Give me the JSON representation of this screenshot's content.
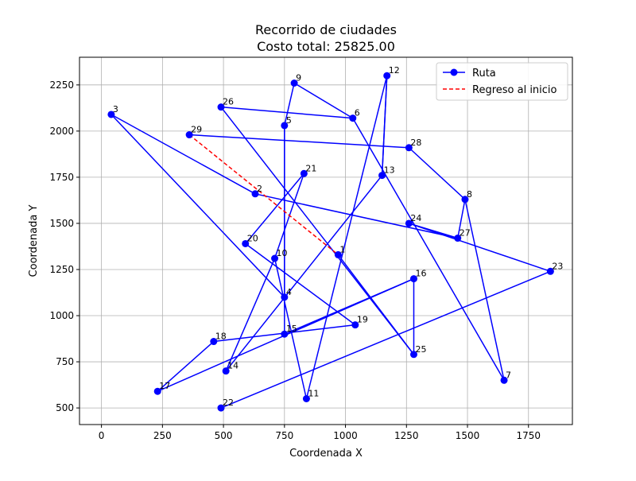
{
  "chart_data": {
    "type": "line",
    "title": "Recorrido de ciudades",
    "subtitle": "Costo total: 25825.00",
    "xlabel": "Coordenada X",
    "ylabel": "Coordenada Y",
    "xlim": [
      -90,
      1930
    ],
    "ylim": [
      410,
      2400
    ],
    "xticks": [
      0,
      250,
      500,
      750,
      1000,
      1250,
      1500,
      1750
    ],
    "yticks": [
      500,
      750,
      1000,
      1250,
      1500,
      1750,
      2000,
      2250
    ],
    "xtick_labels": [
      "0",
      "250",
      "500",
      "750",
      "1000",
      "1250",
      "1500",
      "1750"
    ],
    "ytick_labels": [
      "500",
      "750",
      "1000",
      "1250",
      "1500",
      "1750",
      "2000",
      "2250"
    ],
    "grid": true,
    "legend_position": "top-right",
    "legend": [
      "Ruta",
      "Regreso al inicio"
    ],
    "colors": {
      "route": "#0000ff",
      "return": "#ff0000",
      "grid": "#b0b0b0"
    },
    "cities": [
      {
        "id": "1",
        "x": 970,
        "y": 1330
      },
      {
        "id": "2",
        "x": 630,
        "y": 1660
      },
      {
        "id": "3",
        "x": 40,
        "y": 2090
      },
      {
        "id": "4",
        "x": 750,
        "y": 1100
      },
      {
        "id": "5",
        "x": 750,
        "y": 2030
      },
      {
        "id": "6",
        "x": 1030,
        "y": 2070
      },
      {
        "id": "7",
        "x": 1650,
        "y": 650
      },
      {
        "id": "8",
        "x": 1490,
        "y": 1630
      },
      {
        "id": "9",
        "x": 790,
        "y": 2260
      },
      {
        "id": "10",
        "x": 710,
        "y": 1310
      },
      {
        "id": "11",
        "x": 840,
        "y": 550
      },
      {
        "id": "12",
        "x": 1170,
        "y": 2300
      },
      {
        "id": "13",
        "x": 1150,
        "y": 1760
      },
      {
        "id": "14",
        "x": 510,
        "y": 700
      },
      {
        "id": "15",
        "x": 750,
        "y": 900
      },
      {
        "id": "16",
        "x": 1280,
        "y": 1200
      },
      {
        "id": "17",
        "x": 230,
        "y": 590
      },
      {
        "id": "18",
        "x": 460,
        "y": 860
      },
      {
        "id": "19",
        "x": 1040,
        "y": 950
      },
      {
        "id": "20",
        "x": 590,
        "y": 1390
      },
      {
        "id": "21",
        "x": 830,
        "y": 1770
      },
      {
        "id": "22",
        "x": 490,
        "y": 500
      },
      {
        "id": "23",
        "x": 1840,
        "y": 1240
      },
      {
        "id": "24",
        "x": 1260,
        "y": 1500
      },
      {
        "id": "25",
        "x": 1280,
        "y": 790
      },
      {
        "id": "26",
        "x": 490,
        "y": 2130
      },
      {
        "id": "27",
        "x": 1460,
        "y": 1420
      },
      {
        "id": "28",
        "x": 1260,
        "y": 1910
      },
      {
        "id": "29",
        "x": 360,
        "y": 1980
      }
    ],
    "route": [
      "1",
      "25",
      "26",
      "6",
      "9",
      "5",
      "4",
      "3",
      "2",
      "27",
      "8",
      "28",
      "29"
    ],
    "route_extra_segments": [
      [
        "6",
        "7"
      ],
      [
        "7",
        "8"
      ],
      [
        "12",
        "11"
      ],
      [
        "12",
        "13"
      ],
      [
        "13",
        "14"
      ],
      [
        "5",
        "15"
      ],
      [
        "15",
        "16"
      ],
      [
        "16",
        "25"
      ],
      [
        "16",
        "17"
      ],
      [
        "17",
        "18"
      ],
      [
        "18",
        "19"
      ],
      [
        "19",
        "20"
      ],
      [
        "20",
        "21"
      ],
      [
        "21",
        "10"
      ],
      [
        "10",
        "11"
      ],
      [
        "22",
        "23"
      ],
      [
        "23",
        "24"
      ],
      [
        "24",
        "27"
      ],
      [
        "10",
        "14"
      ],
      [
        "13",
        "12"
      ]
    ],
    "return_segment": [
      "29",
      "1"
    ]
  }
}
